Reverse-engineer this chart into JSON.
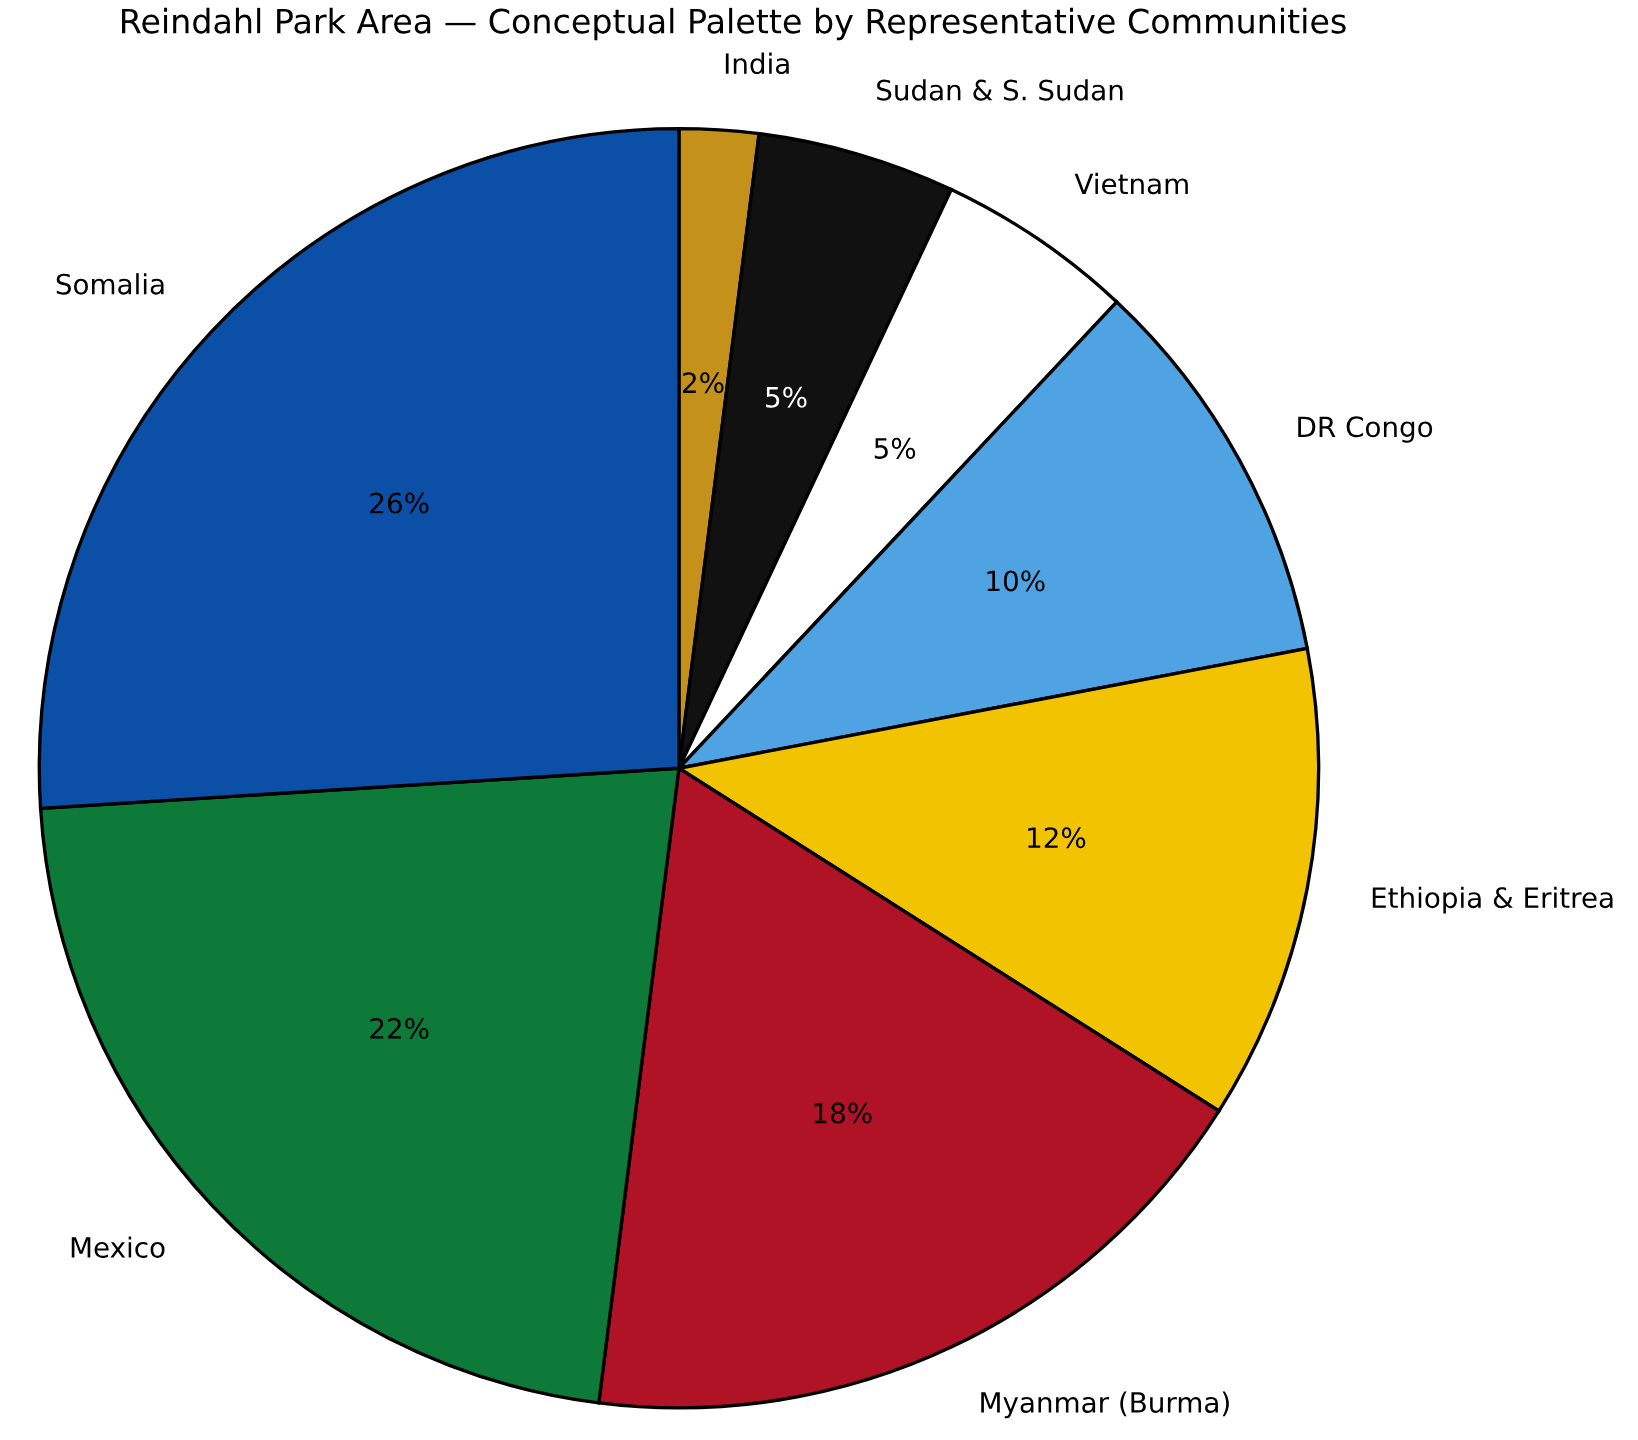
{
  "chart_data": {
    "type": "pie",
    "title": "Reindahl Park Area — Conceptual Palette by Representative Communities",
    "categories": [
      "India",
      "Sudan & S. Sudan",
      "Vietnam",
      "DR Congo",
      "Ethiopia & Eritrea",
      "Myanmar (Burma)",
      "Mexico",
      "Somalia"
    ],
    "values": [
      2,
      5,
      5,
      10,
      12,
      18,
      22,
      26
    ],
    "colors": [
      "#c4921a",
      "#111111",
      "#ffffff",
      "#4fa3e2",
      "#f2c300",
      "#b01226",
      "#0e7a3a",
      "#0c4fa6"
    ],
    "value_labels": [
      "2%",
      "5%",
      "5%",
      "10%",
      "12%",
      "18%",
      "22%",
      "26%"
    ],
    "legend": false
  }
}
